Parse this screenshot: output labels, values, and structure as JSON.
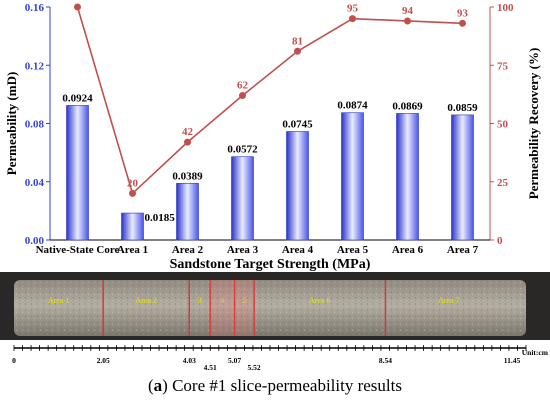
{
  "chart_data": {
    "type": "bar+line",
    "categories": [
      "Native-State Core",
      "Area 1",
      "Area 2",
      "Area 3",
      "Area 4",
      "Area 5",
      "Area 6",
      "Area 7"
    ],
    "series": [
      {
        "name": "Permeability",
        "type": "bar",
        "axis": "left",
        "values": [
          0.0924,
          0.0185,
          0.0389,
          0.0572,
          0.0745,
          0.0874,
          0.0869,
          0.0859
        ],
        "labels": [
          "0.0924",
          "0.0185",
          "0.0389",
          "0.0572",
          "0.0745",
          "0.0874",
          "0.0869",
          "0.0859"
        ]
      },
      {
        "name": "Permeability Recovery",
        "type": "line",
        "axis": "right",
        "values": [
          100,
          20,
          42,
          62,
          81,
          95,
          94,
          93
        ],
        "labels": [
          "100",
          "20",
          "42",
          "62",
          "81",
          "95",
          "94",
          "93"
        ]
      }
    ],
    "xlabel": "Sandstone Target Strength (MPa)",
    "ylabel_left": "Permeability (mD)",
    "ylabel_right": "Permeability Recovery (%)",
    "ylim_left": [
      0,
      0.16
    ],
    "yticks_left": [
      "0.00",
      "0.04",
      "0.08",
      "0.12",
      "0.16"
    ],
    "ylim_right": [
      0,
      100
    ],
    "yticks_right": [
      "0",
      "25",
      "50",
      "75",
      "100"
    ],
    "colors": {
      "bar": "#4a56e8",
      "line": "#c0504d",
      "line_label": "#c0504d",
      "right_axis": "#c0504d",
      "left_axis": "#3344cc"
    }
  },
  "core_image": {
    "areas": [
      {
        "label": "Area 1",
        "start": 0,
        "end": 2.05
      },
      {
        "label": "Area 2",
        "start": 2.05,
        "end": 4.03
      },
      {
        "label": "3",
        "start": 4.03,
        "end": 4.51
      },
      {
        "label": "4",
        "start": 4.51,
        "end": 5.07
      },
      {
        "label": "5",
        "start": 5.07,
        "end": 5.52
      },
      {
        "label": "Area 6",
        "start": 5.52,
        "end": 8.54
      },
      {
        "label": "Area 7",
        "start": 8.54,
        "end": 11.45
      }
    ],
    "ruler_ticks": [
      "0",
      "2.05",
      "4.03",
      "4.51",
      "5.07",
      "5.52",
      "8.54",
      "11.45"
    ],
    "ruler_max": 11.45,
    "unit_label": "Unit:cm",
    "colors": {
      "cut_line": "#e03030",
      "area_text": "#e6e600"
    }
  },
  "caption": {
    "letter": "a",
    "text": " Core #1 slice-permeability results"
  }
}
